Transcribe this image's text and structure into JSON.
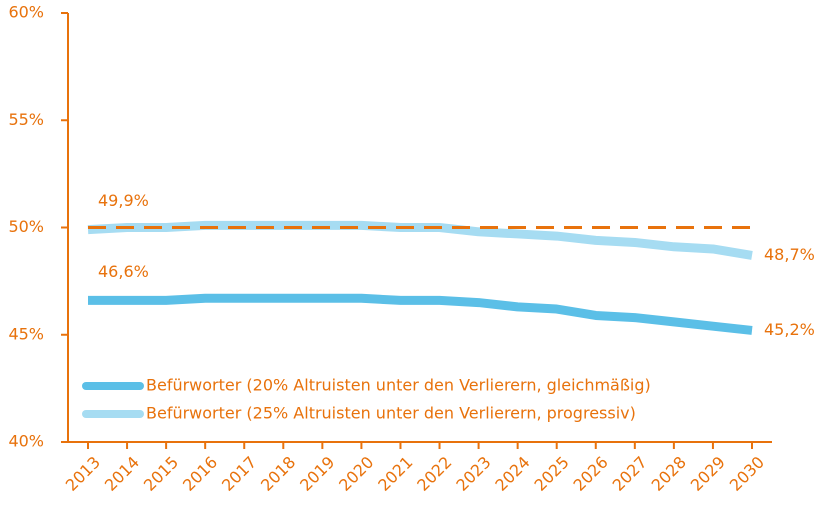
{
  "chart_data": {
    "type": "line",
    "categories": [
      "2013",
      "2014",
      "2015",
      "2016",
      "2017",
      "2018",
      "2019",
      "2020",
      "2021",
      "2022",
      "2023",
      "2024",
      "2025",
      "2026",
      "2027",
      "2028",
      "2029",
      "2030"
    ],
    "series": [
      {
        "name": "Befürworter (20% Altruisten unter den Verlierern, gleichmäßig)",
        "color": "#5bbfe7",
        "values": [
          46.6,
          46.6,
          46.6,
          46.7,
          46.7,
          46.7,
          46.7,
          46.7,
          46.6,
          46.6,
          46.5,
          46.3,
          46.2,
          45.9,
          45.8,
          45.6,
          45.4,
          45.2
        ],
        "value_labels": [
          "46,6%",
          null,
          null,
          null,
          null,
          null,
          null,
          null,
          null,
          null,
          null,
          null,
          null,
          null,
          null,
          null,
          null,
          "45,2%"
        ]
      },
      {
        "name": "Befürworter (25% Altruisten unter den Verlierern, progressiv)",
        "color": "#a6dcf2",
        "values": [
          49.9,
          50.0,
          50.0,
          50.1,
          50.1,
          50.1,
          50.1,
          50.1,
          50.0,
          50.0,
          49.8,
          49.7,
          49.6,
          49.4,
          49.3,
          49.1,
          49.0,
          48.7
        ],
        "value_labels": [
          "49,9%",
          null,
          null,
          null,
          null,
          null,
          null,
          null,
          null,
          null,
          null,
          null,
          null,
          null,
          null,
          null,
          null,
          "48,7%"
        ]
      }
    ],
    "reference_line": {
      "value": 50,
      "color": "#e8720c",
      "style": "dashed"
    },
    "ylim": [
      40,
      60
    ],
    "yticks": [
      {
        "value": 40,
        "label": "40%"
      },
      {
        "value": 45,
        "label": "45%"
      },
      {
        "value": 50,
        "label": "50%"
      },
      {
        "value": 55,
        "label": "55%"
      },
      {
        "value": 60,
        "label": "60%"
      }
    ],
    "axis_color": "#e8720c",
    "legend": "lower left"
  }
}
